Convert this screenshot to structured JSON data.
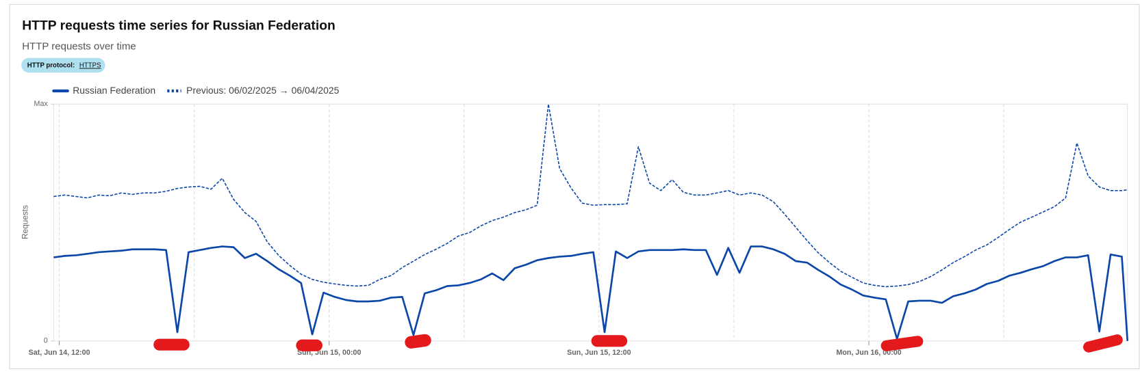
{
  "chart_data": {
    "type": "line",
    "title": "HTTP requests time series for Russian Federation",
    "subtitle": "HTTP requests over time",
    "filter": {
      "label": "HTTP protocol:",
      "value": "HTTPS"
    },
    "y_label": "Requests",
    "xlim": [
      "Jun 14, 11:45",
      "Jun 16, 11:30"
    ],
    "xticks": [
      {
        "value": "Jun 14, 12:00",
        "label": "Sat, Jun 14, 12:00"
      },
      {
        "value": "Jun 15, 00:00",
        "label": "Sun, Jun 15, 00:00"
      },
      {
        "value": "Jun 15, 12:00",
        "label": "Sun, Jun 15, 12:00"
      },
      {
        "value": "Jun 16, 00:00",
        "label": "Mon, Jun 16, 00:00"
      }
    ],
    "xminor": [
      "Jun 14, 18:00",
      "Jun 15, 06:00",
      "Jun 15, 18:00",
      "Jun 16, 06:00"
    ],
    "ylim": [
      0,
      100
    ],
    "yticks": [
      0,
      {
        "value": 100,
        "label": "Max"
      }
    ],
    "grid": true,
    "x": [
      "Jun 14, 11:45",
      "Jun 14, 12:15",
      "Jun 14, 12:45",
      "Jun 14, 13:15",
      "Jun 14, 13:45",
      "Jun 14, 14:15",
      "Jun 14, 14:45",
      "Jun 14, 15:15",
      "Jun 14, 15:45",
      "Jun 14, 16:15",
      "Jun 14, 16:45",
      "Jun 14, 17:15",
      "Jun 14, 17:45",
      "Jun 14, 18:15",
      "Jun 14, 18:45",
      "Jun 14, 19:15",
      "Jun 14, 19:45",
      "Jun 14, 20:15",
      "Jun 14, 20:45",
      "Jun 14, 21:15",
      "Jun 14, 21:45",
      "Jun 14, 22:15",
      "Jun 14, 22:45",
      "Jun 14, 23:15",
      "Jun 14, 23:45",
      "Jun 15, 00:15",
      "Jun 15, 00:45",
      "Jun 15, 01:15",
      "Jun 15, 01:45",
      "Jun 15, 02:15",
      "Jun 15, 02:45",
      "Jun 15, 03:15",
      "Jun 15, 03:45",
      "Jun 15, 04:15",
      "Jun 15, 04:45",
      "Jun 15, 05:15",
      "Jun 15, 05:45",
      "Jun 15, 06:15",
      "Jun 15, 06:45",
      "Jun 15, 07:15",
      "Jun 15, 07:45",
      "Jun 15, 08:15",
      "Jun 15, 08:45",
      "Jun 15, 09:15",
      "Jun 15, 09:45",
      "Jun 15, 10:15",
      "Jun 15, 10:45",
      "Jun 15, 11:15",
      "Jun 15, 11:45",
      "Jun 15, 12:15",
      "Jun 15, 12:45",
      "Jun 15, 13:15",
      "Jun 15, 13:45",
      "Jun 15, 14:15",
      "Jun 15, 14:45",
      "Jun 15, 15:15",
      "Jun 15, 15:45",
      "Jun 15, 16:15",
      "Jun 15, 16:45",
      "Jun 15, 17:15",
      "Jun 15, 17:45",
      "Jun 15, 18:15",
      "Jun 15, 18:45",
      "Jun 15, 19:15",
      "Jun 15, 19:45",
      "Jun 15, 20:15",
      "Jun 15, 20:45",
      "Jun 15, 21:15",
      "Jun 15, 21:45",
      "Jun 15, 22:15",
      "Jun 15, 22:45",
      "Jun 15, 23:15",
      "Jun 15, 23:45",
      "Jun 16, 00:15",
      "Jun 16, 00:45",
      "Jun 16, 01:15",
      "Jun 16, 01:45",
      "Jun 16, 02:15",
      "Jun 16, 02:45",
      "Jun 16, 03:15",
      "Jun 16, 03:45",
      "Jun 16, 04:15",
      "Jun 16, 04:45",
      "Jun 16, 05:15",
      "Jun 16, 05:45",
      "Jun 16, 06:15",
      "Jun 16, 06:45",
      "Jun 16, 07:15",
      "Jun 16, 07:45",
      "Jun 16, 08:15",
      "Jun 16, 08:45",
      "Jun 16, 09:15",
      "Jun 16, 09:45",
      "Jun 16, 10:15",
      "Jun 16, 10:45",
      "Jun 16, 11:15",
      "Jun 16, 11:30"
    ],
    "series": [
      {
        "name": "Russian Federation",
        "color": "#0b47a8",
        "dashed": false,
        "values": [
          35.3,
          35.9,
          36.2,
          36.8,
          37.5,
          37.8,
          38.1,
          38.7,
          38.7,
          38.7,
          38.4,
          3.7,
          37.5,
          38.4,
          39.3,
          39.9,
          39.6,
          35,
          36.8,
          33.7,
          30.3,
          27.6,
          24.5,
          2.8,
          20.4,
          18.6,
          17.3,
          16.7,
          16.7,
          17,
          18.3,
          18.6,
          2.5,
          20.1,
          21.4,
          23.2,
          23.5,
          24.5,
          26,
          28.5,
          25.7,
          30.7,
          32.2,
          34.1,
          35,
          35.6,
          35.9,
          36.8,
          37.5,
          3.7,
          37.8,
          35,
          37.8,
          38.4,
          38.4,
          38.4,
          38.7,
          38.4,
          38.4,
          27.9,
          39.3,
          28.8,
          39.9,
          39.9,
          38.7,
          36.8,
          33.7,
          33.1,
          30,
          27.2,
          23.8,
          21.7,
          19.2,
          18.3,
          17.6,
          0.9,
          16.7,
          17,
          17,
          16.1,
          18.9,
          20.1,
          21.7,
          24.1,
          25.4,
          27.6,
          28.8,
          30.3,
          31.6,
          33.7,
          35.3,
          35.3,
          36.2,
          4,
          36.5,
          35.6,
          0
        ]
      },
      {
        "name": "Previous: 06/02/2025 → 06/04/2025",
        "color": "#0b47a8",
        "dashed": true,
        "values": [
          61,
          61.6,
          61,
          60.4,
          61.6,
          61.3,
          62.5,
          61.9,
          62.5,
          62.5,
          63.2,
          64.4,
          65,
          65.3,
          64.1,
          68.7,
          59.8,
          54.2,
          50.5,
          41.8,
          36.2,
          31.9,
          28.2,
          26,
          24.8,
          24.1,
          23.5,
          23.2,
          23.5,
          26,
          27.6,
          31,
          33.7,
          36.5,
          38.7,
          41.2,
          44.3,
          45.8,
          48.6,
          50.8,
          52.3,
          54.2,
          55.4,
          57.3,
          100,
          72.8,
          64.7,
          58.2,
          57.3,
          57.6,
          57.6,
          57.9,
          82,
          66.6,
          63.5,
          68.1,
          62.8,
          61.6,
          61.6,
          62.5,
          63.5,
          61.6,
          62.5,
          61.6,
          58.8,
          53.6,
          48,
          42.4,
          37.2,
          33.1,
          29.4,
          26.9,
          24.5,
          23.5,
          22.9,
          23.2,
          23.8,
          25.1,
          27.2,
          30,
          33.1,
          35.6,
          38.4,
          40.6,
          43.7,
          47.1,
          50.2,
          52.3,
          54.5,
          56.7,
          60.4,
          83.6,
          69.7,
          65,
          63.5,
          63.5,
          63.8
        ]
      }
    ]
  }
}
